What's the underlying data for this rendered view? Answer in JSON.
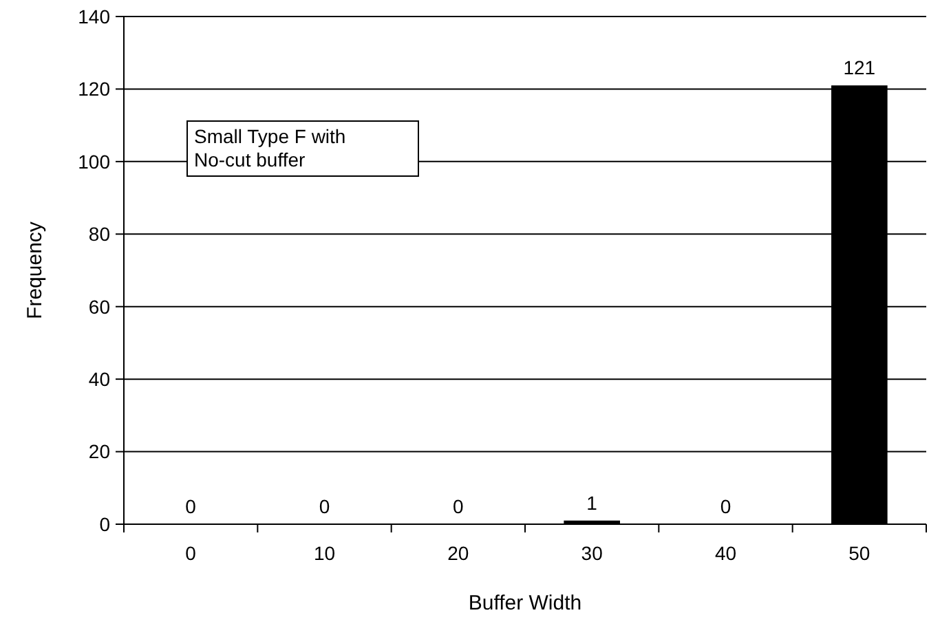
{
  "chart_data": {
    "type": "bar",
    "xlabel": "Buffer Width",
    "ylabel": "Frequency",
    "categories": [
      "0",
      "10",
      "20",
      "30",
      "40",
      "50"
    ],
    "values": [
      0,
      0,
      0,
      1,
      0,
      121
    ],
    "color": "#000000",
    "ylim": [
      0,
      140
    ],
    "yticks": [
      0,
      20,
      40,
      60,
      80,
      100,
      120,
      140
    ],
    "grid": "y",
    "data_labels": true,
    "annotations": [
      "Small Type F with\nNo-cut buffer"
    ]
  }
}
